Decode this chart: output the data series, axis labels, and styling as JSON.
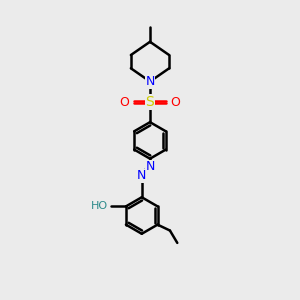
{
  "background_color": "#ebebeb",
  "line_color": "#000000",
  "bond_width": 1.8,
  "atom_colors": {
    "N": "#0000ff",
    "O": "#ff0000",
    "S": "#cccc00",
    "HO": "#2e8b8b",
    "C": "#000000"
  },
  "font_size": 8,
  "figsize": [
    3.0,
    3.0
  ],
  "dpi": 100,
  "xlim": [
    0,
    10
  ],
  "ylim": [
    0,
    10
  ]
}
